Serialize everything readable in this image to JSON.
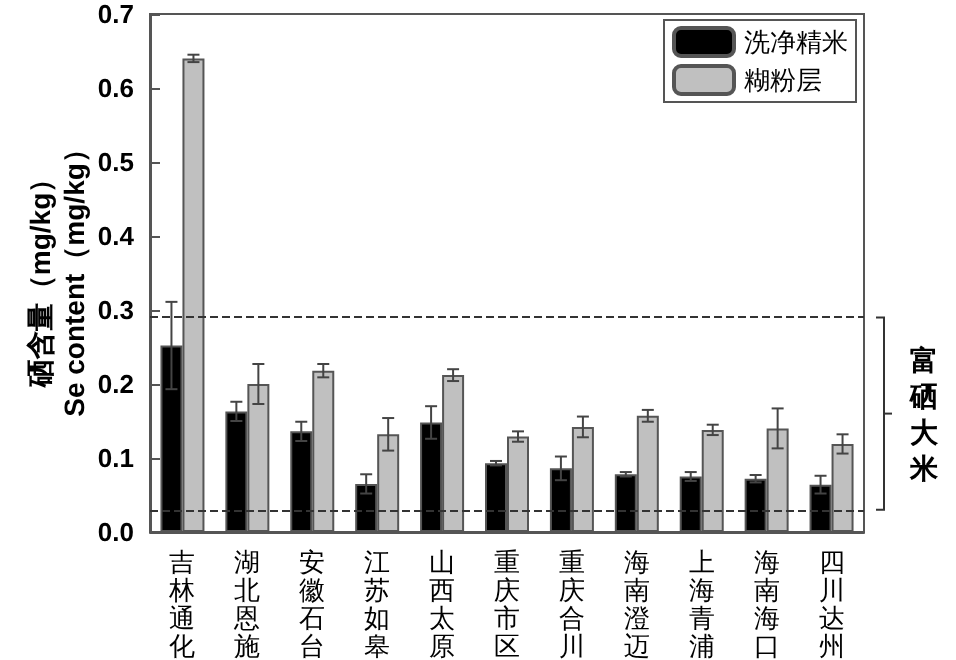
{
  "chart_data": {
    "type": "bar",
    "ylabel": "硒含量（mg/kg）\nSe content（mg/kg）",
    "categories": [
      "吉林通化",
      "湖北恩施",
      "安徽石台",
      "江苏如皋",
      "山西太原",
      "重庆市区",
      "重庆合川",
      "海南澄迈",
      "上海青浦",
      "海南海口",
      "四川达州"
    ],
    "series": [
      {
        "name": "洗净精米",
        "color": "#000000",
        "values": [
          0.252,
          0.163,
          0.136,
          0.065,
          0.148,
          0.093,
          0.086,
          0.078,
          0.075,
          0.072,
          0.064
        ],
        "errors": [
          0.059,
          0.013,
          0.013,
          0.013,
          0.022,
          0.003,
          0.016,
          0.003,
          0.006,
          0.005,
          0.012
        ]
      },
      {
        "name": "糊粉层",
        "color": "#c0c0c0",
        "values": [
          0.64,
          0.2,
          0.218,
          0.132,
          0.212,
          0.129,
          0.142,
          0.157,
          0.138,
          0.14,
          0.119
        ],
        "errors": [
          0.005,
          0.027,
          0.009,
          0.022,
          0.008,
          0.007,
          0.014,
          0.008,
          0.007,
          0.027,
          0.013
        ]
      }
    ],
    "ylim": [
      0,
      0.7
    ],
    "yticks": [
      {
        "value": 0,
        "label": "0.0"
      },
      {
        "value": 0.1,
        "label": "0.1"
      },
      {
        "value": 0.2,
        "label": "0.2"
      },
      {
        "value": 0.3,
        "label": "0.3"
      },
      {
        "value": 0.4,
        "label": "0.4"
      },
      {
        "value": 0.5,
        "label": "0.5"
      },
      {
        "value": 0.6,
        "label": "0.6"
      },
      {
        "value": 0.7,
        "label": "0.7"
      }
    ],
    "ref_lines": [
      {
        "axis": "y",
        "value": 0.29,
        "line_style": "dashed",
        "color": "#333333"
      },
      {
        "axis": "y",
        "value": 0.03,
        "line_style": "dashed",
        "color": "#333333"
      }
    ],
    "annotations": [
      "富硒大米"
    ],
    "legend": "top right",
    "grid": false
  }
}
